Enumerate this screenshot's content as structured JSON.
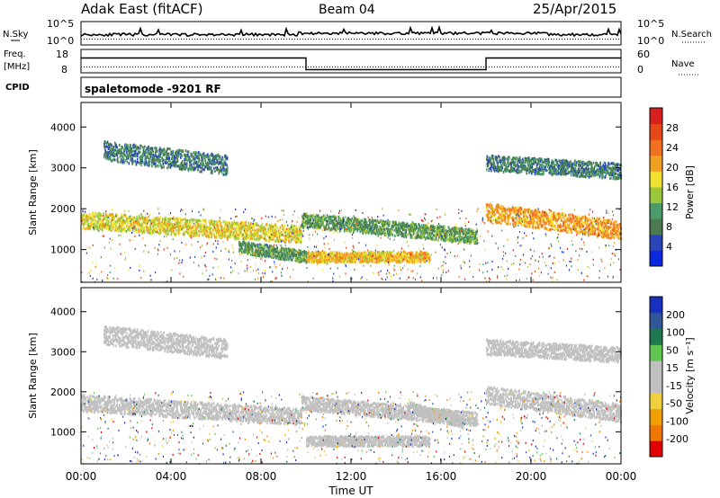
{
  "header": {
    "station": "Adak East (fitACF)",
    "beam": "Beam 04",
    "date": "25/Apr/2015"
  },
  "panels": {
    "nsky": {
      "left_label": "N.Sky",
      "left_ticks": [
        "10^5",
        "10^0"
      ],
      "right_label": "N.Search",
      "right_ticks": [
        "10^5",
        "10^0"
      ]
    },
    "freq": {
      "left_label_top": "Freq.",
      "left_label_unit": "[MHz]",
      "left_ticks": [
        "18",
        "8"
      ],
      "right_label": "Nave",
      "right_ticks": [
        "60",
        "0"
      ]
    },
    "cpid": {
      "label": "CPID",
      "mode_text": "spaletomode -9201 RF"
    }
  },
  "colors": {
    "power_bar": [
      "#0a28e0",
      "#2a45b8",
      "#4a7a4e",
      "#4a9a6a",
      "#9ac83a",
      "#f0e030",
      "#f0a020",
      "#f07020",
      "#e84818",
      "#d82020"
    ],
    "velocity_bar": [
      "#e00000",
      "#f07800",
      "#f0a000",
      "#f0d040",
      "#c0c0c0",
      "#c0c0c0",
      "#60c850",
      "#207850",
      "#305898",
      "#1830c0"
    ]
  },
  "chart_data": [
    {
      "type": "heatmap",
      "title": "Power",
      "ylabel": "Slant Range [km]",
      "yticks": [
        1000,
        2000,
        3000,
        4000
      ],
      "ylim": [
        200,
        4600
      ],
      "xlim_hours": [
        0,
        24
      ],
      "colorbar": {
        "label": "Power [dB]",
        "ticks": [
          "4",
          "8",
          "12",
          "16",
          "20",
          "24",
          "28"
        ],
        "range": [
          0,
          30
        ]
      },
      "bands": [
        {
          "t_start": 0.0,
          "t_end": 9.8,
          "r_start": 1700,
          "r_end": 1350,
          "width": 260,
          "level": 16
        },
        {
          "t_start": 9.8,
          "t_end": 17.6,
          "r_start": 1700,
          "r_end": 1300,
          "width": 220,
          "level": 10
        },
        {
          "t_start": 18.0,
          "t_end": 24.0,
          "r_start": 1900,
          "r_end": 1450,
          "width": 280,
          "level": 20
        },
        {
          "t_start": 10.0,
          "t_end": 15.5,
          "r_start": 800,
          "r_end": 800,
          "width": 160,
          "level": 18
        },
        {
          "t_start": 7.0,
          "t_end": 10.0,
          "r_start": 1050,
          "r_end": 800,
          "width": 180,
          "level": 10
        },
        {
          "t_start": 1.0,
          "t_end": 6.5,
          "r_start": 3400,
          "r_end": 3050,
          "width": 300,
          "level": 8
        },
        {
          "t_start": 18.0,
          "t_end": 24.0,
          "r_start": 3100,
          "r_end": 2900,
          "width": 240,
          "level": 8
        }
      ]
    },
    {
      "type": "heatmap",
      "title": "Velocity",
      "ylabel": "Slant Range [km]",
      "yticks": [
        1000,
        2000,
        3000,
        4000
      ],
      "ylim": [
        200,
        4600
      ],
      "xlim_hours": [
        0,
        24
      ],
      "xticks": [
        "00:00",
        "04:00",
        "08:00",
        "12:00",
        "16:00",
        "20:00",
        "00:00"
      ],
      "xlabel": "Time UT",
      "colorbar": {
        "label": "Velocity [m s⁻¹]",
        "ticks": [
          "-200",
          "-100",
          "-50",
          "-15",
          "15",
          "50",
          "100",
          "200"
        ],
        "range": [
          -250,
          250
        ]
      },
      "bands": [
        {
          "t_start": 0.0,
          "t_end": 9.8,
          "r_start": 1700,
          "r_end": 1350,
          "width": 260,
          "level": 0
        },
        {
          "t_start": 9.8,
          "t_end": 17.6,
          "r_start": 1700,
          "r_end": 1300,
          "width": 220,
          "level": 0
        },
        {
          "t_start": 18.0,
          "t_end": 24.0,
          "r_start": 1900,
          "r_end": 1450,
          "width": 280,
          "level": 0
        },
        {
          "t_start": 10.0,
          "t_end": 15.5,
          "r_start": 750,
          "r_end": 750,
          "width": 160,
          "level": 30
        },
        {
          "t_start": 14.5,
          "t_end": 17.0,
          "r_start": 1600,
          "r_end": 1200,
          "width": 180,
          "level": 35
        },
        {
          "t_start": 1.0,
          "t_end": 6.5,
          "r_start": 3400,
          "r_end": 3050,
          "width": 300,
          "level": -30
        },
        {
          "t_start": 18.0,
          "t_end": 24.0,
          "r_start": 3100,
          "r_end": 2900,
          "width": 240,
          "level": 5
        }
      ]
    }
  ]
}
